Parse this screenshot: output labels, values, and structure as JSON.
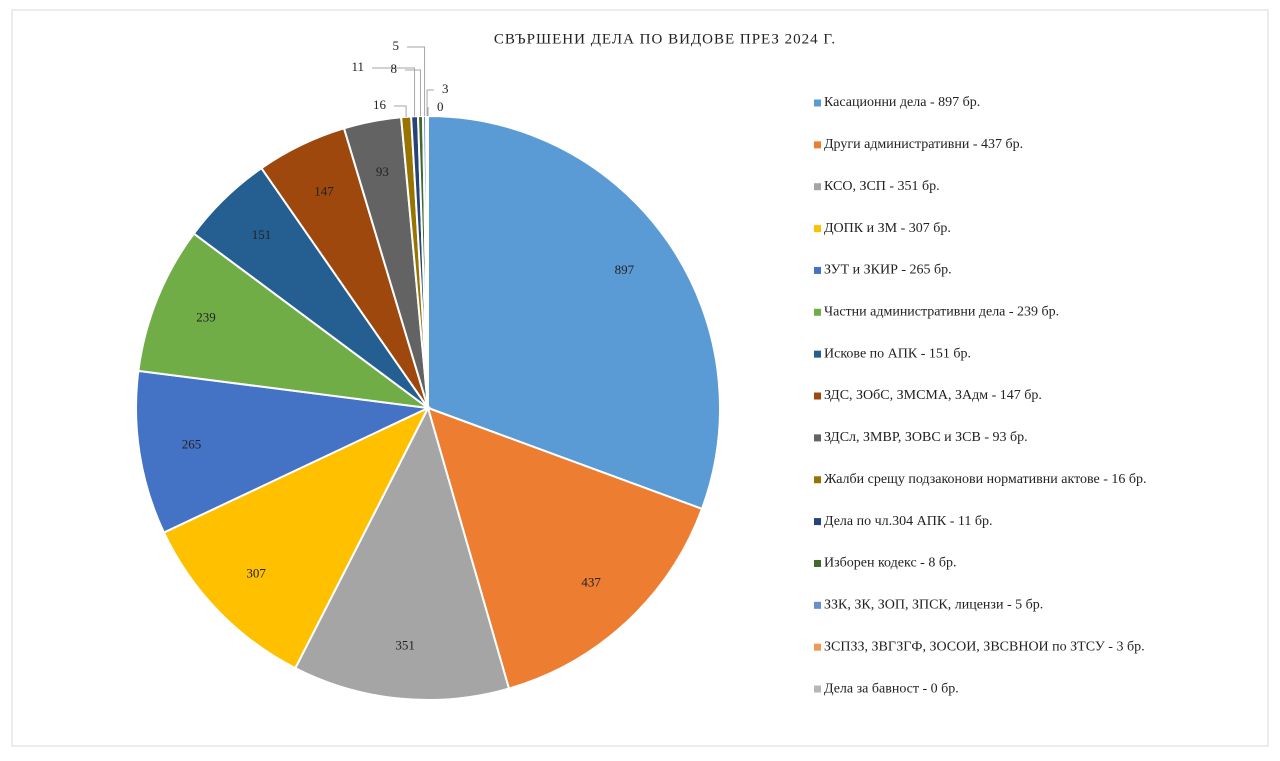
{
  "chart_data": {
    "type": "pie",
    "title": "СВЪРШЕНИ  ДЕЛА ПО ВИДОВЕ ПРЕЗ 2024 Г.",
    "categories": [
      "Касационни дела - 897 бр.",
      "Други административни - 437 бр.",
      "КСО, ЗСП - 351 бр.",
      "ДОПК и ЗМ - 307 бр.",
      "ЗУТ и ЗКИР - 265 бр.",
      "Частни административни дела - 239 бр.",
      "Искове по АПК - 151 бр.",
      "ЗДС, ЗОбС, ЗМСМА,  ЗАдм - 147 бр.",
      "ЗДСл, ЗМВР, ЗОВС и ЗСВ - 93 бр.",
      "Жалби срещу  подзаконови нормативни актове - 16 бр.",
      "Дела по чл.304 АПК - 11 бр.",
      "Изборен кодекс - 8 бр.",
      "ЗЗК, ЗК, ЗОП, ЗПСК, лицензи - 5 бр.",
      "ЗСПЗЗ, ЗВГЗГФ, ЗОСОИ, ЗВСВНОИ по ЗТСУ - 3 бр.",
      "Дела за бавност - 0 бр."
    ],
    "values": [
      897,
      437,
      351,
      307,
      265,
      239,
      151,
      147,
      93,
      16,
      11,
      8,
      5,
      3,
      0
    ],
    "colors": [
      "#5b9bd5",
      "#ed7d31",
      "#a5a5a5",
      "#ffc000",
      "#4472c4",
      "#70ad47",
      "#255e91",
      "#9e480e",
      "#636363",
      "#997300",
      "#264478",
      "#43682b",
      "#698ed0",
      "#f1975a",
      "#b7b7b7"
    ]
  }
}
